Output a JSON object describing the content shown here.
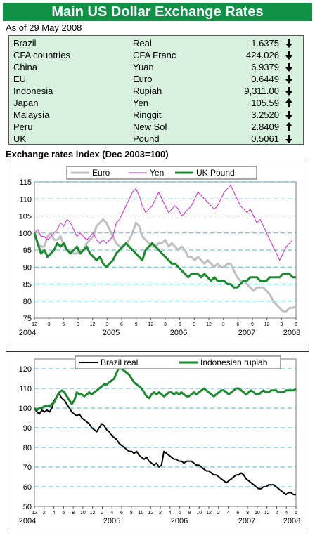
{
  "header": {
    "title": "Main US Dollar Exchange Rates",
    "as_of": "As of 29 May 2008"
  },
  "rates": [
    {
      "country": "Brazil",
      "currency": "Real",
      "value": "1.6375",
      "direction": "down"
    },
    {
      "country": "CFA countries",
      "currency": "CFA Franc",
      "value": "424.026",
      "direction": "down"
    },
    {
      "country": "China",
      "currency": "Yuan",
      "value": "6.9379",
      "direction": "down"
    },
    {
      "country": "EU",
      "currency": "Euro",
      "value": "0.6449",
      "direction": "down"
    },
    {
      "country": "Indonesia",
      "currency": "Rupiah",
      "value": "9,311.00",
      "direction": "down"
    },
    {
      "country": "Japan",
      "currency": "Yen",
      "value": "105.59",
      "direction": "up"
    },
    {
      "country": "Malaysia",
      "currency": "Ringgit",
      "value": "3.2520",
      "direction": "down"
    },
    {
      "country": "Peru",
      "currency": "New Sol",
      "value": "2.8409",
      "direction": "up"
    },
    {
      "country": "UK",
      "currency": "Pound",
      "value": "0.5061",
      "direction": "down"
    }
  ],
  "colors": {
    "header_green": "#0f9146",
    "table_bg": "#d8f1de",
    "euro": "#c0c0c0",
    "yen": "#e020e0",
    "pound": "#1a8a2e",
    "real": "#000000",
    "rupiah": "#1a8a2e",
    "grid": "#3fbfd6"
  },
  "chart_data": [
    {
      "type": "line",
      "title": "Exchange rates index (Dec 2003=100)",
      "ylim": [
        75,
        115
      ],
      "yticks": [
        75,
        80,
        85,
        90,
        95,
        100,
        105,
        110,
        115
      ],
      "month_ticks": [
        "12",
        "3",
        "6",
        "9",
        "12",
        "3",
        "6",
        "9",
        "12",
        "3",
        "6",
        "9",
        "12",
        "3",
        "6",
        "9",
        "12",
        "3",
        "6"
      ],
      "year_labels": [
        "2004",
        "2005",
        "2006",
        "2007",
        "2008"
      ],
      "legend_position": "top",
      "grid": "horizontal dashed",
      "series": [
        {
          "name": "Euro",
          "color": "#c0c0c0",
          "values": [
            100,
            97,
            96,
            96,
            99,
            100,
            98,
            98,
            99,
            96,
            95,
            95,
            94,
            94,
            95,
            95,
            97,
            98,
            99,
            102,
            103,
            104,
            103,
            101,
            99,
            97,
            96,
            96,
            97,
            98,
            100,
            103,
            102,
            99,
            98,
            97,
            96,
            96,
            97,
            97,
            98,
            96,
            97,
            96,
            95,
            96,
            95,
            93,
            93,
            92,
            93,
            92,
            91,
            92,
            91,
            90,
            91,
            90,
            90,
            91,
            91,
            89,
            87,
            86,
            86,
            85,
            84,
            83,
            84,
            84,
            84,
            83,
            82,
            80,
            79,
            78,
            77,
            77,
            78,
            78,
            78.5
          ]
        },
        {
          "name": "Yen",
          "color": "#e020e0",
          "values": [
            100,
            101,
            99,
            99,
            98,
            99,
            100,
            101,
            103,
            102,
            104,
            103,
            101,
            99,
            100,
            99,
            98,
            99,
            100,
            98,
            97,
            98,
            97,
            98,
            99,
            103,
            104,
            106,
            108,
            110,
            112,
            113,
            111,
            108,
            106,
            107,
            108,
            110,
            112,
            110,
            108,
            106,
            107,
            108,
            107,
            105,
            106,
            107,
            108,
            110,
            112,
            111,
            110,
            109,
            108,
            107,
            108,
            110,
            112,
            113,
            114,
            112,
            110,
            108,
            107,
            106,
            107,
            105,
            103,
            104,
            102,
            100,
            98,
            96,
            94,
            92,
            94,
            96,
            97,
            98,
            98
          ]
        },
        {
          "name": "UK Pound",
          "color": "#1a8a2e",
          "values": [
            100,
            97,
            94,
            95,
            93,
            94,
            95,
            97,
            96,
            97,
            95,
            94,
            95,
            96,
            94,
            95,
            96,
            94,
            93,
            92,
            93,
            91,
            90,
            91,
            92,
            94,
            95,
            96,
            97,
            96,
            95,
            94,
            93,
            92,
            95,
            96,
            97,
            96,
            95,
            94,
            93,
            92,
            91,
            91,
            90,
            89,
            88,
            87,
            88,
            88,
            88,
            87,
            88,
            87,
            86,
            87,
            86,
            86,
            86,
            85,
            85,
            84,
            84,
            85,
            86,
            86,
            87,
            87,
            87,
            86,
            86,
            86,
            87,
            87,
            87,
            87,
            88,
            88,
            88,
            87,
            87
          ]
        }
      ]
    },
    {
      "type": "line",
      "title": "",
      "ylim": [
        50,
        125
      ],
      "yticks": [
        50,
        60,
        70,
        80,
        90,
        100,
        110,
        120
      ],
      "month_ticks": [
        "12",
        "2",
        "4",
        "6",
        "8",
        "10",
        "12",
        "2",
        "4",
        "6",
        "8",
        "10",
        "12",
        "2",
        "4",
        "6",
        "8",
        "10",
        "12",
        "2",
        "4",
        "6",
        "8",
        "10",
        "12",
        "2",
        "4",
        "6"
      ],
      "year_labels": [
        "2004",
        "2005",
        "2006",
        "2007",
        "2008"
      ],
      "legend_position": "top",
      "grid": "horizontal dashed",
      "series": [
        {
          "name": "Brazil real",
          "color": "#000000",
          "values": [
            100,
            98,
            97,
            99,
            98,
            99,
            98,
            100,
            104,
            106,
            107,
            105,
            104,
            102,
            100,
            98,
            97,
            96,
            97,
            95,
            94,
            93,
            92,
            90,
            89,
            88,
            90,
            92,
            91,
            89,
            88,
            86,
            85,
            84,
            82,
            81,
            80,
            79,
            78,
            78,
            77,
            78,
            76,
            75,
            74,
            75,
            73,
            72,
            71,
            72,
            70,
            71,
            78,
            77,
            76,
            75,
            74,
            74,
            73,
            73,
            72,
            73,
            73,
            73,
            72,
            71,
            71,
            70,
            69,
            68,
            68,
            67,
            66,
            66,
            65,
            64,
            63,
            62,
            63,
            64,
            65,
            66,
            66,
            67,
            66,
            64,
            63,
            62,
            61,
            60,
            59,
            59,
            60,
            60,
            61,
            61,
            61,
            60,
            59,
            58,
            57,
            56,
            57,
            57,
            56,
            56
          ]
        },
        {
          "name": "Indonesian rupiah",
          "color": "#1a8a2e",
          "values": [
            100,
            99,
            100,
            100,
            101,
            101,
            101,
            102,
            103,
            106,
            108,
            109,
            108,
            106,
            104,
            102,
            104,
            108,
            107,
            107,
            106,
            107,
            108,
            107,
            108,
            109,
            110,
            111,
            112,
            112,
            113,
            114,
            115,
            118,
            121,
            120,
            119,
            118,
            117,
            115,
            113,
            112,
            111,
            110,
            108,
            106,
            105,
            107,
            108,
            107,
            108,
            107,
            106,
            107,
            108,
            108,
            107,
            108,
            107,
            108,
            107,
            106,
            106,
            107,
            108,
            107,
            108,
            109,
            110,
            109,
            108,
            107,
            106,
            107,
            108,
            109,
            109,
            108,
            107,
            108,
            109,
            110,
            110,
            109,
            108,
            107,
            108,
            109,
            108,
            107,
            107,
            108,
            109,
            108,
            108,
            109,
            109,
            109,
            108,
            108,
            108,
            109,
            109,
            109,
            109,
            110
          ]
        }
      ]
    }
  ]
}
